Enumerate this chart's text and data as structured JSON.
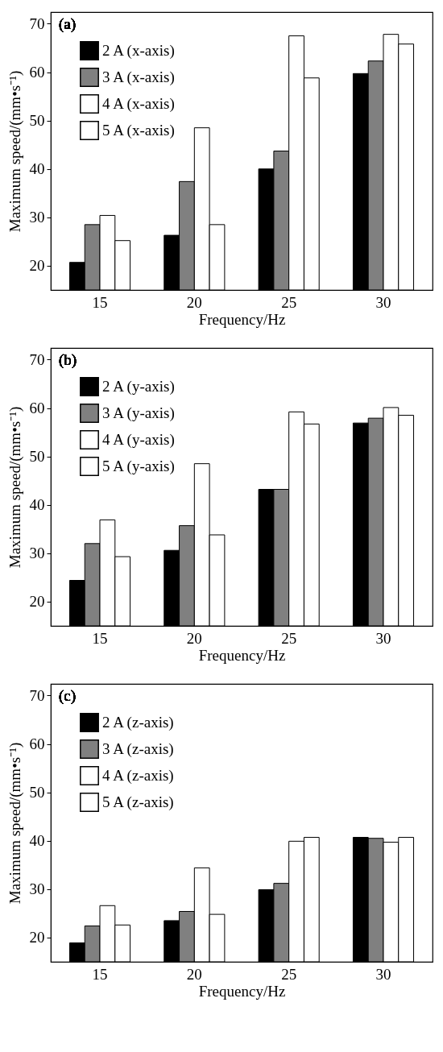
{
  "chart_data": [
    {
      "type": "bar",
      "xlabel": "Frequency/Hz",
      "ylabel": "Maximum speed/(mm•s⁻¹)",
      "annotations": [
        "(a)"
      ],
      "categories": [
        "15",
        "20",
        "25",
        "30"
      ],
      "ylim": [
        15,
        72.4
      ],
      "yticks": [
        20,
        30,
        40,
        50,
        60,
        70
      ],
      "legend": "top left",
      "grid": false,
      "series": [
        {
          "name": "2 A (x-axis)",
          "color": "#000000",
          "values": [
            20.7,
            26.3,
            40.0,
            59.7
          ]
        },
        {
          "name": "3 A (x-axis)",
          "color": "#808080",
          "values": [
            28.5,
            37.4,
            43.7,
            62.3
          ]
        },
        {
          "name": "4 A (x-axis)",
          "color": "#ffffff",
          "values": [
            30.4,
            48.5,
            67.5,
            67.8
          ]
        },
        {
          "name": "5 A (x-axis)",
          "color": "#ffffff",
          "values": [
            25.2,
            28.5,
            58.8,
            65.8
          ]
        }
      ]
    },
    {
      "type": "bar",
      "xlabel": "Frequency/Hz",
      "ylabel": "Maximum speed/(mm•s⁻¹)",
      "annotations": [
        "(b)"
      ],
      "categories": [
        "15",
        "20",
        "25",
        "30"
      ],
      "ylim": [
        15,
        72.4
      ],
      "yticks": [
        20,
        30,
        40,
        50,
        60,
        70
      ],
      "legend": "top left",
      "grid": false,
      "series": [
        {
          "name": "2 A (y-axis)",
          "color": "#000000",
          "values": [
            24.4,
            30.6,
            43.2,
            56.9
          ]
        },
        {
          "name": "3 A (y-axis)",
          "color": "#808080",
          "values": [
            32.0,
            35.7,
            43.2,
            57.9
          ]
        },
        {
          "name": "4 A (y-axis)",
          "color": "#ffffff",
          "values": [
            36.9,
            48.5,
            59.2,
            60.1
          ]
        },
        {
          "name": "5 A (y-axis)",
          "color": "#ffffff",
          "values": [
            29.3,
            33.8,
            56.7,
            58.5
          ]
        }
      ]
    },
    {
      "type": "bar",
      "xlabel": "Frequency/Hz",
      "ylabel": "Maximum speed/(mm•s⁻¹)",
      "annotations": [
        "(c)"
      ],
      "categories": [
        "15",
        "20",
        "25",
        "30"
      ],
      "ylim": [
        15,
        72.4
      ],
      "yticks": [
        20,
        30,
        40,
        50,
        60,
        70
      ],
      "legend": "top left",
      "grid": false,
      "series": [
        {
          "name": "2 A (z-axis)",
          "color": "#000000",
          "values": [
            18.9,
            23.5,
            29.9,
            40.7
          ]
        },
        {
          "name": "3 A (z-axis)",
          "color": "#808080",
          "values": [
            22.4,
            25.4,
            31.2,
            40.5
          ]
        },
        {
          "name": "4 A (z-axis)",
          "color": "#ffffff",
          "values": [
            26.6,
            34.4,
            39.9,
            39.7
          ]
        },
        {
          "name": "5 A (z-axis)",
          "color": "#ffffff",
          "values": [
            22.6,
            24.8,
            40.7,
            40.7
          ]
        }
      ]
    }
  ]
}
